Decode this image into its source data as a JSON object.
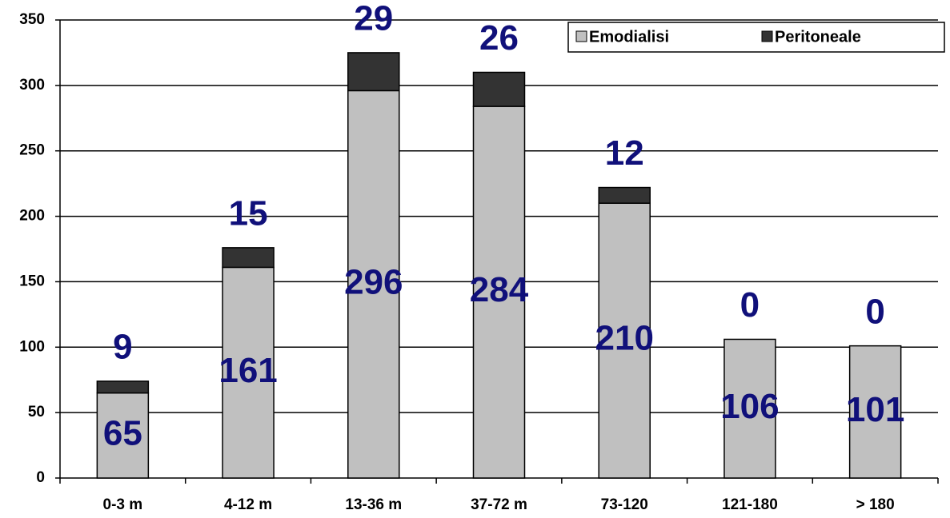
{
  "chart_data": {
    "type": "stacked_bar",
    "categories": [
      "0-3 m",
      "4-12 m",
      "13-36 m",
      "37-72 m",
      "73-120",
      "121-180",
      "> 180"
    ],
    "series": [
      {
        "name": "Emodialisi",
        "color": "#c0c0c0",
        "values": [
          65,
          161,
          296,
          284,
          210,
          106,
          101
        ]
      },
      {
        "name": "Peritoneale",
        "color": "#333333",
        "values": [
          9,
          15,
          29,
          26,
          12,
          0,
          0
        ]
      }
    ],
    "ylim": [
      0,
      350
    ],
    "yticks": [
      0,
      50,
      100,
      150,
      200,
      250,
      300,
      350
    ],
    "grid": true,
    "legend": "top-right",
    "label_color": "#10107a"
  }
}
